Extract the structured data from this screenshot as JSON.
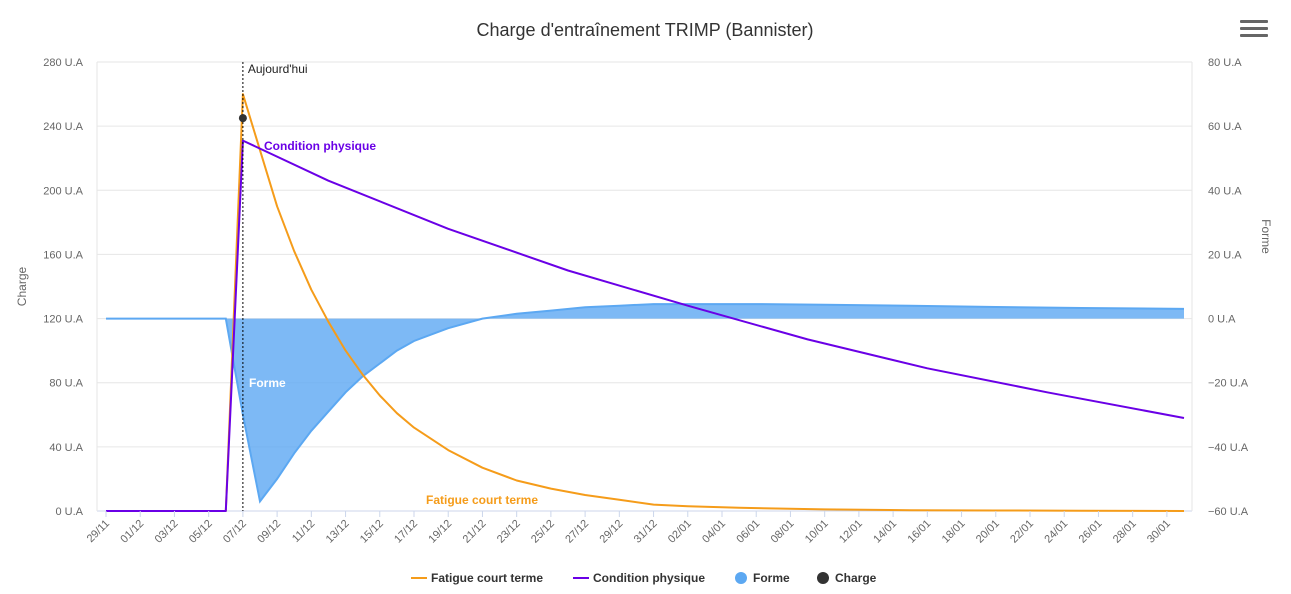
{
  "title": "Charge d'entraînement TRIMP (Bannister)",
  "menu_icon": "hamburger-menu-icon",
  "today_label": "Aujourd'hui",
  "axes": {
    "left": {
      "title": "Charge",
      "ticks": [
        "0 U.A",
        "40 U.A",
        "80 U.A",
        "120 U.A",
        "160 U.A",
        "200 U.A",
        "240 U.A",
        "280 U.A"
      ]
    },
    "right": {
      "title": "Forme",
      "ticks": [
        "−60 U.A",
        "−40 U.A",
        "−20 U.A",
        "0 U.A",
        "20 U.A",
        "40 U.A",
        "60 U.A",
        "80 U.A"
      ]
    },
    "x_ticks": [
      "29/11",
      "01/12",
      "03/12",
      "05/12",
      "07/12",
      "09/12",
      "11/12",
      "13/12",
      "15/12",
      "17/12",
      "19/12",
      "21/12",
      "23/12",
      "25/12",
      "27/12",
      "29/12",
      "31/12",
      "02/01",
      "04/01",
      "06/01",
      "08/01",
      "10/01",
      "12/01",
      "14/01",
      "16/01",
      "18/01",
      "20/01",
      "22/01",
      "24/01",
      "26/01",
      "28/01",
      "30/01"
    ]
  },
  "annotations": {
    "condition": "Condition physique",
    "forme": "Forme",
    "fatigue": "Fatigue court terme"
  },
  "legend": [
    {
      "label": "Fatigue court terme",
      "color": "#f59c1a",
      "symbol": "line"
    },
    {
      "label": "Condition physique",
      "color": "#6a00e6",
      "symbol": "line"
    },
    {
      "label": "Forme",
      "color": "#5ca8f2",
      "symbol": "circle"
    },
    {
      "label": "Charge",
      "color": "#333333",
      "symbol": "circle"
    }
  ],
  "chart_data": {
    "type": "line",
    "x_start": "29/11",
    "x_end": "31/01",
    "today": "07/12",
    "ylim_left": [
      0,
      280
    ],
    "ylim_right": [
      -60,
      80
    ],
    "grid": true,
    "legend_position": "bottom",
    "series": [
      {
        "name": "Fatigue court terme",
        "axis": "left",
        "color": "#f59c1a",
        "x": [
          "29/11",
          "06/12",
          "07/12",
          "08/12",
          "09/12",
          "10/12",
          "11/12",
          "12/12",
          "13/12",
          "14/12",
          "15/12",
          "16/12",
          "17/12",
          "19/12",
          "21/12",
          "23/12",
          "25/12",
          "27/12",
          "29/12",
          "31/12",
          "02/01",
          "05/01",
          "10/01",
          "15/01",
          "20/01",
          "25/01",
          "31/01"
        ],
        "y": [
          0,
          0,
          260,
          225,
          190,
          162,
          138,
          118,
          100,
          85,
          72,
          61,
          52,
          38,
          27,
          19,
          14,
          10,
          7,
          4,
          3,
          2,
          1,
          0.5,
          0.3,
          0.2,
          0
        ]
      },
      {
        "name": "Condition physique",
        "axis": "left",
        "color": "#6a00e6",
        "x": [
          "29/11",
          "06/12",
          "07/12",
          "12/12",
          "19/12",
          "26/12",
          "02/01",
          "09/01",
          "16/01",
          "23/01",
          "31/01"
        ],
        "y": [
          0,
          0,
          231,
          206,
          176,
          150,
          128,
          107,
          89,
          74,
          58
        ]
      },
      {
        "name": "Forme",
        "axis": "right",
        "color": "#5ca8f2",
        "x": [
          "29/11",
          "06/12",
          "07/12",
          "08/12",
          "09/12",
          "10/12",
          "11/12",
          "12/12",
          "13/12",
          "14/12",
          "15/12",
          "16/12",
          "17/12",
          "18/12",
          "19/12",
          "21/12",
          "23/12",
          "25/12",
          "27/12",
          "29/12",
          "31/12",
          "02/01",
          "04/01",
          "06/01",
          "10/01",
          "15/01",
          "20/01",
          "25/01",
          "31/01"
        ],
        "y": [
          0,
          0,
          -30,
          -57,
          -50,
          -42,
          -35,
          -29,
          -23,
          -18,
          -14,
          -10,
          -7,
          -5,
          -3,
          0,
          1.5,
          2.5,
          3.5,
          4,
          4.5,
          4.5,
          4.5,
          4.5,
          4.3,
          4,
          3.6,
          3.3,
          3
        ]
      },
      {
        "name": "Charge",
        "axis": "left",
        "color": "#333333",
        "type": "scatter",
        "x": [
          "07/12"
        ],
        "y": [
          245
        ]
      }
    ]
  }
}
